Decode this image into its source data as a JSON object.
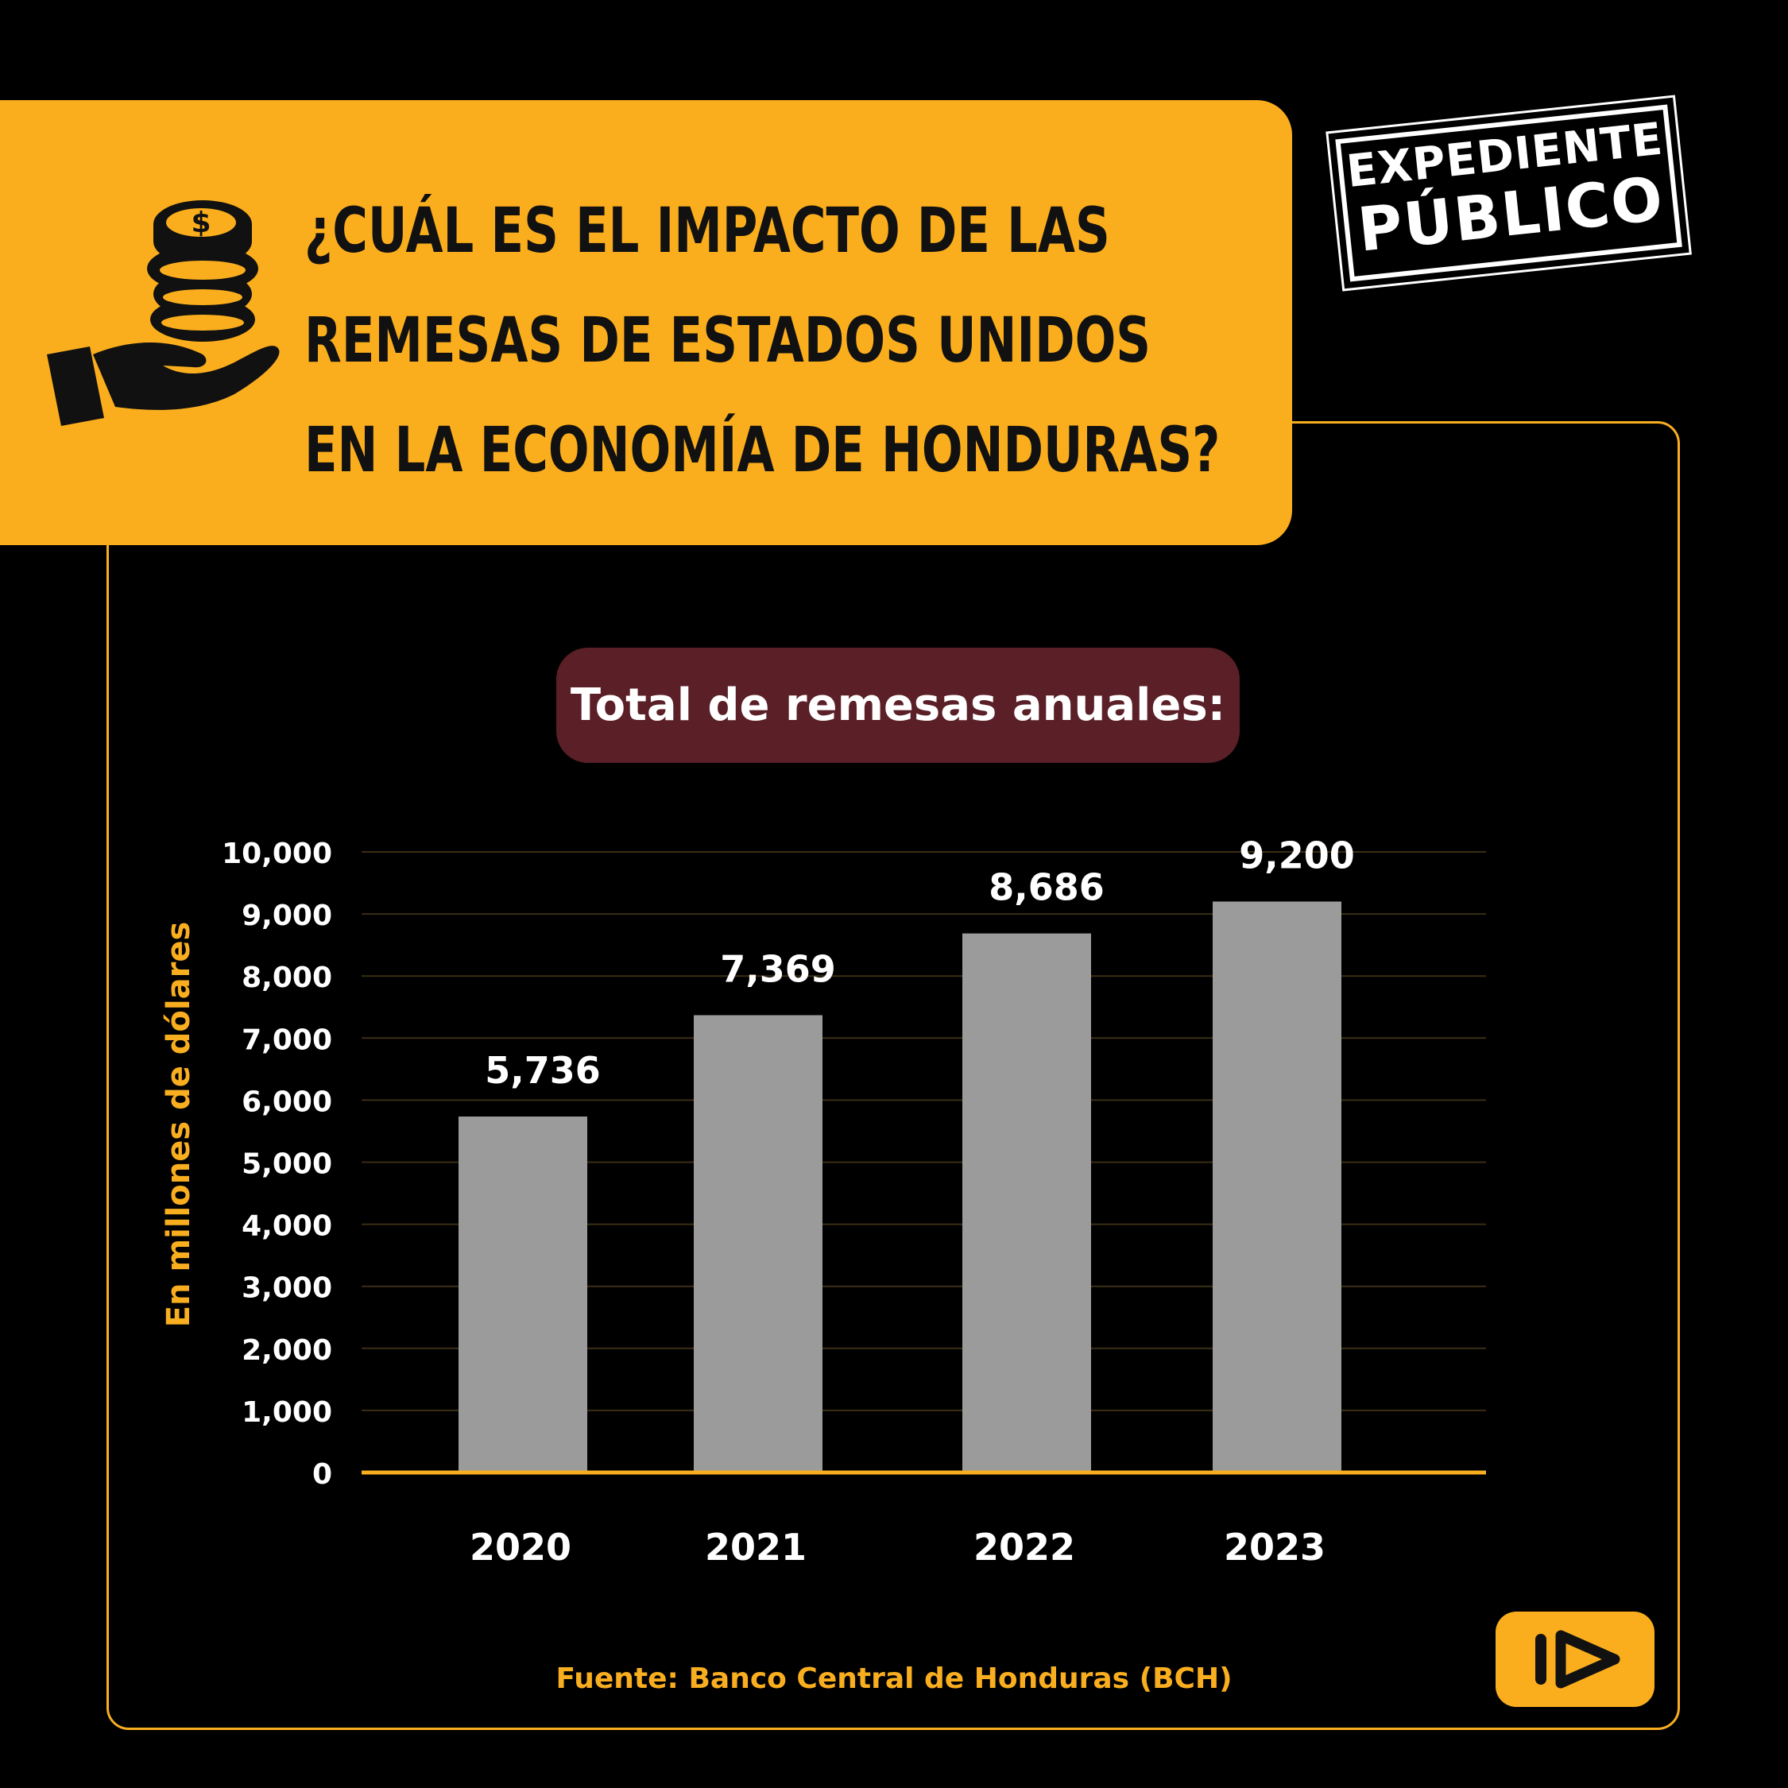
{
  "header": {
    "title_lines": [
      "¿CUÁL ES EL IMPACTO DE LAS",
      "REMESAS DE ESTADOS UNIDOS",
      "EN LA ECONOMÍA DE HONDURAS?"
    ]
  },
  "logo": {
    "line1": "EXPEDIENTE",
    "line2": "PÚBLICO"
  },
  "chart_title": "Total de remesas anuales:",
  "source": "Fuente: Banco Central de Honduras (BCH)",
  "icons": {
    "header": "hand-with-coins-icon",
    "next": "next-arrow-icon"
  },
  "colors": {
    "accent": "#fbae1d",
    "bar": "#9b9b9b",
    "pill": "#5a1f27",
    "background": "#000000"
  },
  "chart_data": {
    "type": "bar",
    "title": "Total de remesas anuales:",
    "ylabel": "En millones de dólares",
    "xlabel": "",
    "categories": [
      "2020",
      "2021",
      "2022",
      "2023"
    ],
    "values": [
      5736,
      7369,
      8686,
      9200
    ],
    "value_labels": [
      "5,736",
      "7,369",
      "8,686",
      "9,200"
    ],
    "ylim": [
      0,
      10000
    ],
    "yticks": [
      0,
      1000,
      2000,
      3000,
      4000,
      5000,
      6000,
      7000,
      8000,
      9000,
      10000
    ],
    "ytick_labels": [
      "0",
      "1,000",
      "2,000",
      "3,000",
      "4,000",
      "5,000",
      "6,000",
      "7,000",
      "8,000",
      "9,000",
      "10,000"
    ],
    "grid": true,
    "legend": "none"
  }
}
